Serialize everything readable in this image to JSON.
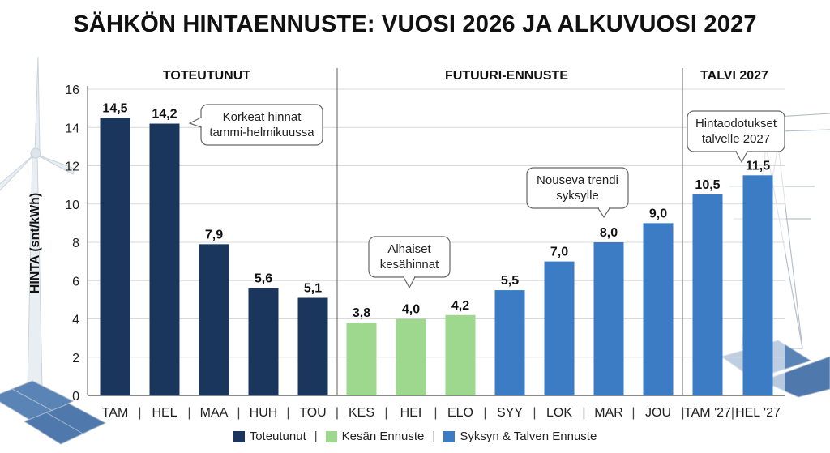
{
  "title": "SÄHKÖN HINTAENNUSTE: VUOSI 2026 JA ALKUVUOSI 2027",
  "chart_data": {
    "type": "bar",
    "title": "SÄHKÖN HINTAENNUSTE: VUOSI 2026 JA ALKUVUOSI 2027",
    "ylabel": "HINTA (snt/kWh)",
    "ylim": [
      0,
      16
    ],
    "yticks": [
      0,
      2,
      4,
      6,
      8,
      10,
      12,
      14,
      16
    ],
    "grid": true,
    "categories": [
      "TAM",
      "HEL",
      "MAA",
      "HUH",
      "TOU",
      "KES",
      "HEI",
      "ELO",
      "SYY",
      "LOK",
      "MAR",
      "JOU",
      "TAM '27",
      "HEL '27"
    ],
    "values": [
      14.5,
      14.2,
      7.9,
      5.6,
      5.1,
      3.8,
      4.0,
      4.2,
      5.5,
      7.0,
      8.0,
      9.0,
      10.5,
      11.5
    ],
    "value_labels": [
      "14,5",
      "14,2",
      "7,9",
      "5,6",
      "5,1",
      "3,8",
      "4,0",
      "4,2",
      "5,5",
      "7,0",
      "8,0",
      "9,0",
      "10,5",
      "11,5"
    ],
    "bar_groups": [
      0,
      0,
      0,
      0,
      0,
      1,
      1,
      1,
      2,
      2,
      2,
      2,
      2,
      2
    ],
    "legend": [
      {
        "label": "Toteutunut",
        "color": "#1a365d"
      },
      {
        "label": "Kesän Ennuste",
        "color": "#9ed88f"
      },
      {
        "label": "Syksyn & Talven Ennuste",
        "color": "#3b7cc4"
      }
    ],
    "legend_position": "bottom",
    "sections": [
      {
        "label": "TOTEUTUNUT",
        "start": 0,
        "end": 4
      },
      {
        "label": "FUTUURI-ENNUSTE",
        "start": 5,
        "end": 11
      },
      {
        "label": "TALVI 2027",
        "start": 12,
        "end": 13
      }
    ],
    "annotations": [
      {
        "lines": [
          "Korkeat hinnat",
          "tammi-helmikuussa"
        ],
        "target": 1
      },
      {
        "lines": [
          "Alhaiset",
          "kesähinnat"
        ],
        "target": 6
      },
      {
        "lines": [
          "Nouseva trendi",
          "syksylle"
        ],
        "target": 10
      },
      {
        "lines": [
          "Hintaodotukset",
          "talvelle 2027"
        ],
        "target": 13
      }
    ]
  },
  "legend_separator": "|"
}
